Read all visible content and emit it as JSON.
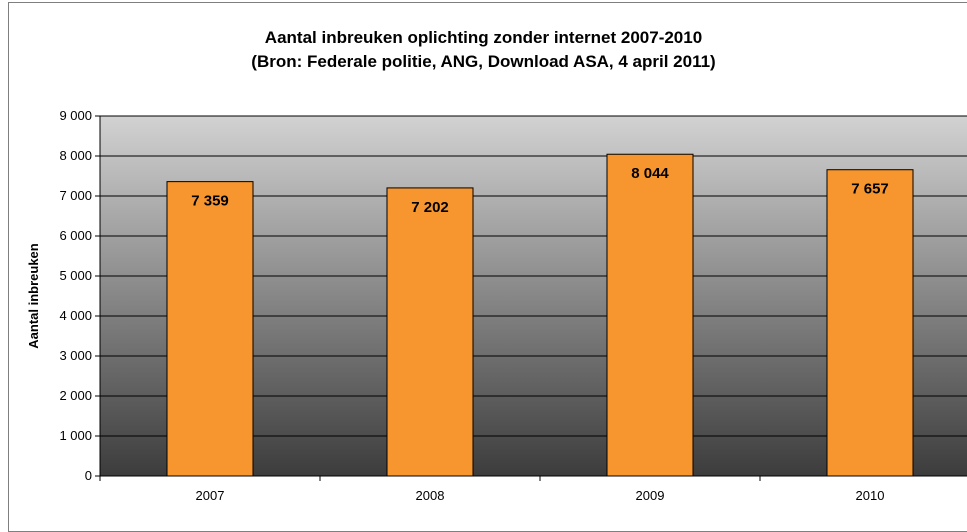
{
  "chart_data": {
    "type": "bar",
    "title": "Aantal inbreuken oplichting zonder internet 2007-2010",
    "subtitle": "(Bron: Federale politie, ANG, Download ASA, 4 april 2011)",
    "ylabel": "Aantal inbreuken",
    "xlabel": "",
    "categories": [
      "2007",
      "2008",
      "2009",
      "2010"
    ],
    "values": [
      7359,
      7202,
      8044,
      7657
    ],
    "value_labels": [
      "7 359",
      "7 202",
      "8 044",
      "7 657"
    ],
    "ylim": [
      0,
      9000
    ],
    "yticks": [
      0,
      1000,
      2000,
      3000,
      4000,
      5000,
      6000,
      7000,
      8000,
      9000
    ],
    "ytick_labels": [
      "0",
      "1 000",
      "2 000",
      "3 000",
      "4 000",
      "5 000",
      "6 000",
      "7 000",
      "8 000",
      "9 000"
    ],
    "grid": true,
    "legend": "none",
    "colors": {
      "bar_fill": "#f7962e",
      "bar_stroke": "#000000",
      "plot_top": "#d2d2d2",
      "plot_bottom": "#3c3c3c",
      "gridline": "#000000"
    }
  }
}
